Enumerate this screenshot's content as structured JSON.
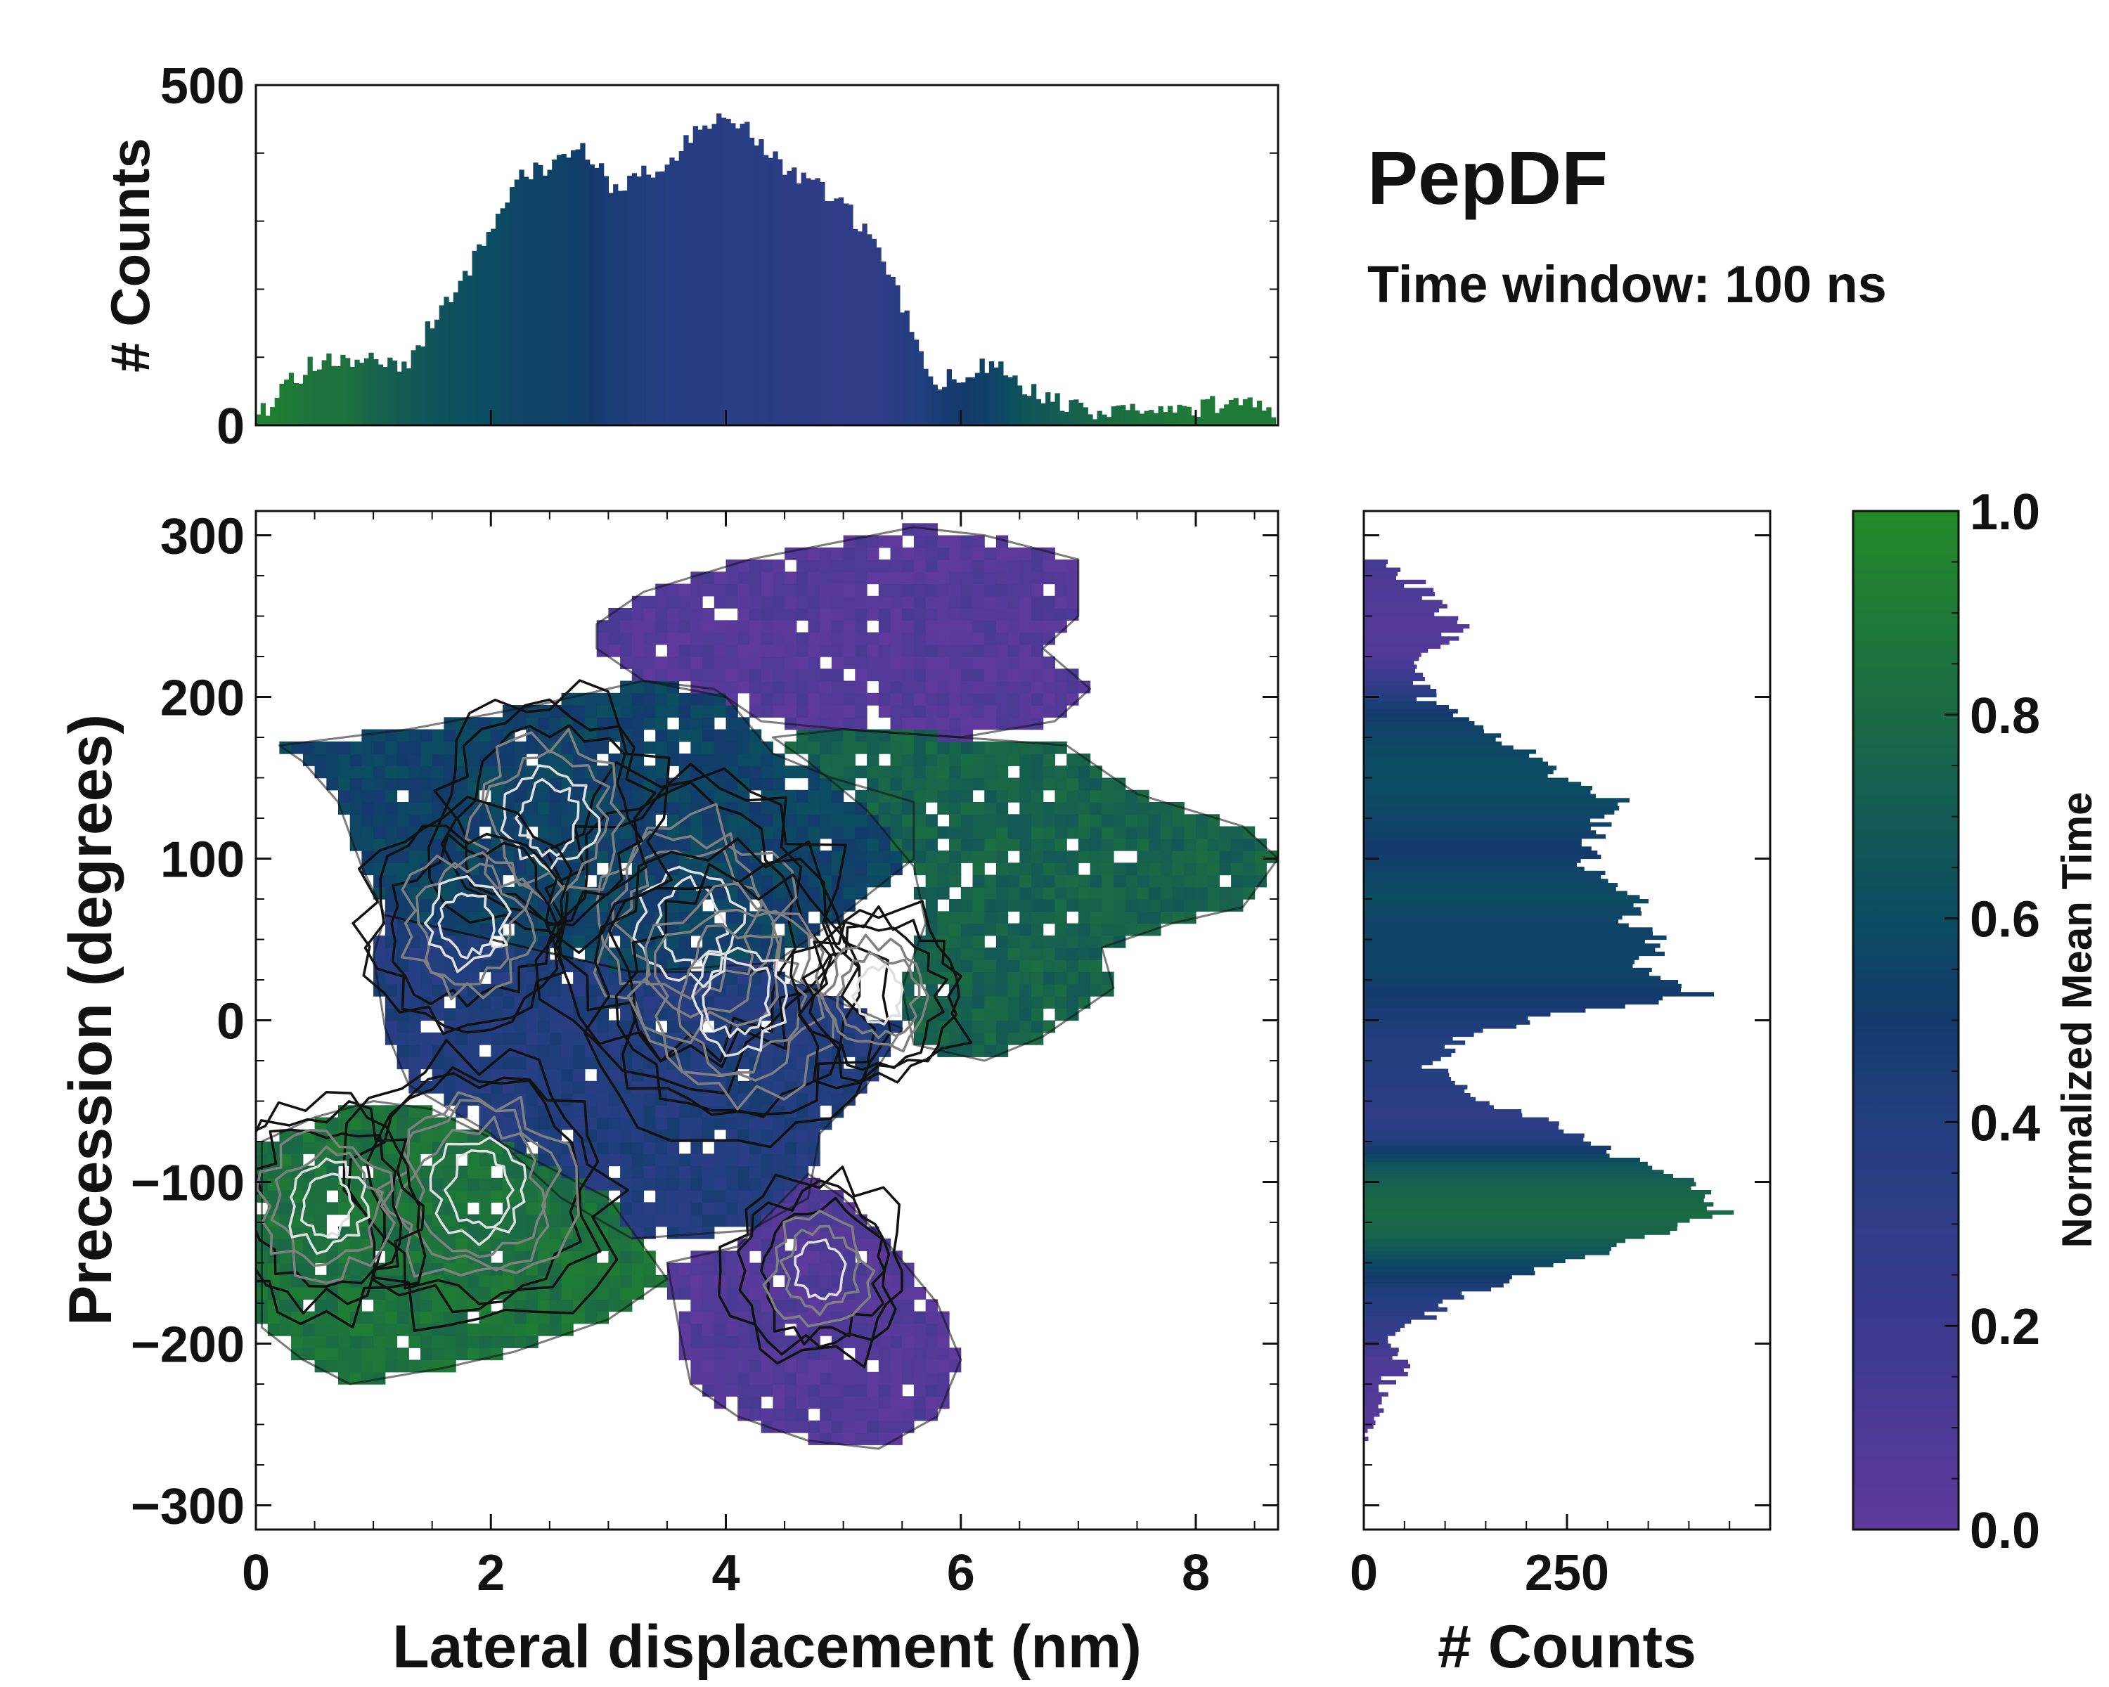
{
  "title": "PepDF",
  "subtitle": "Time window: 100 ns",
  "colors": {
    "t0": "#5e3a9c",
    "t02": "#3a3a8e",
    "t04": "#233f80",
    "t05": "#133a6c",
    "t06": "#0c4c62",
    "t08": "#1b6a45",
    "t1": "#238a28",
    "contour_dark": "#111111",
    "contour_gray": "#808080",
    "contour_light": "#e0e0e0"
  },
  "chart_data": [
    {
      "id": "main",
      "type": "heatmap",
      "xlabel": "Lateral displacement (nm)",
      "ylabel": "Precession (degrees)",
      "xlim": [
        0,
        8.7
      ],
      "ylim": [
        -315,
        315
      ],
      "xticks": [
        0,
        2,
        4,
        6,
        8
      ],
      "xtick_labels": [
        "0",
        "2",
        "4",
        "6",
        "8"
      ],
      "yticks": [
        300,
        200,
        100,
        0,
        -100,
        -200,
        -300
      ],
      "ytick_labels": [
        "300",
        "200",
        "100",
        "0",
        "−100",
        "−200",
        "−300"
      ],
      "color_by": "Normalized Mean Time",
      "regions": [
        {
          "name": "upper-purple",
          "t": 0.05,
          "polygon": [
            [
              2.9,
              245
            ],
            [
              3.3,
              265
            ],
            [
              4.2,
              285
            ],
            [
              4.9,
              295
            ],
            [
              5.6,
              305
            ],
            [
              6.2,
              300
            ],
            [
              7.0,
              285
            ],
            [
              7.0,
              250
            ],
            [
              6.7,
              230
            ],
            [
              7.1,
              205
            ],
            [
              6.8,
              185
            ],
            [
              6.0,
              175
            ],
            [
              5.0,
              180
            ],
            [
              4.3,
              185
            ],
            [
              3.9,
              205
            ],
            [
              3.3,
              210
            ],
            [
              2.9,
              230
            ]
          ]
        },
        {
          "name": "upper-left-blue",
          "t": 0.55,
          "polygon": [
            [
              0.2,
              170
            ],
            [
              1.3,
              180
            ],
            [
              2.4,
              195
            ],
            [
              3.3,
              210
            ],
            [
              4.0,
              200
            ],
            [
              4.4,
              165
            ],
            [
              4.9,
              150
            ],
            [
              5.6,
              135
            ],
            [
              5.6,
              100
            ],
            [
              4.9,
              60
            ],
            [
              4.3,
              30
            ],
            [
              3.2,
              30
            ],
            [
              2.0,
              50
            ],
            [
              1.1,
              65
            ],
            [
              0.9,
              95
            ],
            [
              0.7,
              135
            ],
            [
              0.4,
              160
            ]
          ]
        },
        {
          "name": "upper-right-green",
          "t": 0.75,
          "polygon": [
            [
              4.4,
              175
            ],
            [
              5.0,
              180
            ],
            [
              6.0,
              175
            ],
            [
              6.9,
              170
            ],
            [
              7.5,
              140
            ],
            [
              8.4,
              120
            ],
            [
              8.7,
              100
            ],
            [
              8.4,
              70
            ],
            [
              7.8,
              60
            ],
            [
              7.2,
              45
            ],
            [
              7.3,
              20
            ],
            [
              6.7,
              -10
            ],
            [
              6.2,
              -25
            ],
            [
              5.6,
              -15
            ],
            [
              5.5,
              20
            ],
            [
              5.7,
              60
            ],
            [
              5.6,
              95
            ],
            [
              5.2,
              130
            ],
            [
              4.7,
              160
            ]
          ]
        },
        {
          "name": "central-blue",
          "t": 0.4,
          "polygon": [
            [
              1.1,
              65
            ],
            [
              2.0,
              50
            ],
            [
              3.2,
              30
            ],
            [
              4.3,
              35
            ],
            [
              5.0,
              10
            ],
            [
              5.5,
              -5
            ],
            [
              5.2,
              -40
            ],
            [
              4.8,
              -70
            ],
            [
              4.7,
              -110
            ],
            [
              4.2,
              -130
            ],
            [
              3.2,
              -135
            ],
            [
              2.6,
              -110
            ],
            [
              2.0,
              -70
            ],
            [
              1.3,
              -40
            ],
            [
              1.1,
              -5
            ],
            [
              1.0,
              40
            ]
          ]
        },
        {
          "name": "lower-left-green",
          "t": 0.85,
          "polygon": [
            [
              0.05,
              -75
            ],
            [
              0.5,
              -60
            ],
            [
              1.0,
              -50
            ],
            [
              1.5,
              -55
            ],
            [
              2.2,
              -80
            ],
            [
              3.0,
              -110
            ],
            [
              3.3,
              -140
            ],
            [
              3.5,
              -160
            ],
            [
              3.0,
              -185
            ],
            [
              2.2,
              -205
            ],
            [
              1.6,
              -215
            ],
            [
              0.8,
              -225
            ],
            [
              0.4,
              -210
            ],
            [
              0.05,
              -190
            ]
          ]
        },
        {
          "name": "lower-purple",
          "t": 0.06,
          "polygon": [
            [
              3.5,
              -150
            ],
            [
              4.1,
              -140
            ],
            [
              4.7,
              -95
            ],
            [
              5.0,
              -110
            ],
            [
              5.4,
              -140
            ],
            [
              5.8,
              -175
            ],
            [
              6.0,
              -210
            ],
            [
              5.8,
              -245
            ],
            [
              5.3,
              -265
            ],
            [
              4.7,
              -260
            ],
            [
              4.1,
              -245
            ],
            [
              3.7,
              -225
            ],
            [
              3.6,
              -190
            ]
          ]
        }
      ],
      "contour_hotspots": [
        {
          "x": 3.7,
          "y": 60,
          "level": 1.0
        },
        {
          "x": 4.1,
          "y": 15,
          "level": 0.95
        },
        {
          "x": 2.5,
          "y": 125,
          "level": 0.8
        },
        {
          "x": 1.8,
          "y": 60,
          "level": 0.7
        },
        {
          "x": 1.9,
          "y": -105,
          "level": 0.9
        },
        {
          "x": 0.6,
          "y": -115,
          "level": 0.7
        },
        {
          "x": 4.8,
          "y": -155,
          "level": 0.6
        },
        {
          "x": 5.3,
          "y": 15,
          "level": 0.6
        }
      ]
    },
    {
      "id": "top-histogram",
      "type": "bar",
      "ylabel": "# Counts",
      "xlim": [
        0,
        8.7
      ],
      "ylim": [
        0,
        500
      ],
      "yticks": [
        500,
        0
      ],
      "ytick_labels": [
        "500",
        "0"
      ],
      "x": [
        0.0,
        0.25,
        0.5,
        0.75,
        1.0,
        1.25,
        1.5,
        1.75,
        2.0,
        2.25,
        2.5,
        2.75,
        3.0,
        3.25,
        3.5,
        3.75,
        4.0,
        4.25,
        4.5,
        4.75,
        5.0,
        5.25,
        5.5,
        5.75,
        6.0,
        6.25,
        6.5,
        6.75,
        7.0,
        7.25,
        7.5,
        7.75,
        8.0,
        8.25,
        8.5,
        8.7
      ],
      "values": [
        10,
        60,
        95,
        95,
        100,
        90,
        155,
        215,
        300,
        370,
        385,
        405,
        355,
        365,
        380,
        440,
        450,
        425,
        375,
        355,
        320,
        265,
        170,
        60,
        75,
        90,
        55,
        35,
        25,
        15,
        22,
        28,
        25,
        35,
        25,
        5
      ],
      "mean_time": [
        0.95,
        0.9,
        0.85,
        0.85,
        0.75,
        0.7,
        0.65,
        0.62,
        0.6,
        0.55,
        0.55,
        0.52,
        0.45,
        0.42,
        0.38,
        0.36,
        0.35,
        0.35,
        0.32,
        0.32,
        0.3,
        0.3,
        0.35,
        0.45,
        0.5,
        0.55,
        0.65,
        0.7,
        0.75,
        0.8,
        0.85,
        0.88,
        0.9,
        0.9,
        0.9,
        0.9
      ]
    },
    {
      "id": "right-histogram",
      "type": "bar",
      "orientation": "horizontal",
      "xlabel": "# Counts",
      "xlim": [
        0,
        500
      ],
      "xticks": [
        0,
        250
      ],
      "xtick_labels": [
        "0",
        "250"
      ],
      "ylim": [
        -315,
        315
      ],
      "y": [
        285,
        270,
        255,
        240,
        225,
        210,
        195,
        180,
        165,
        150,
        135,
        120,
        105,
        90,
        75,
        60,
        45,
        30,
        15,
        0,
        -15,
        -30,
        -45,
        -60,
        -75,
        -90,
        -105,
        -120,
        -135,
        -150,
        -165,
        -180,
        -195,
        -210,
        -225,
        -240,
        -255
      ],
      "values": [
        10,
        60,
        90,
        120,
        75,
        70,
        80,
        140,
        200,
        240,
        310,
        290,
        275,
        280,
        340,
        330,
        370,
        340,
        420,
        210,
        110,
        80,
        120,
        200,
        270,
        340,
        420,
        440,
        350,
        260,
        160,
        90,
        40,
        45,
        35,
        18,
        8
      ],
      "mean_time": [
        0.15,
        0.1,
        0.08,
        0.05,
        0.08,
        0.2,
        0.45,
        0.55,
        0.58,
        0.6,
        0.58,
        0.55,
        0.5,
        0.55,
        0.6,
        0.55,
        0.55,
        0.55,
        0.5,
        0.45,
        0.4,
        0.4,
        0.35,
        0.3,
        0.4,
        0.65,
        0.75,
        0.8,
        0.75,
        0.6,
        0.45,
        0.35,
        0.25,
        0.1,
        0.08,
        0.05,
        0.03
      ]
    },
    {
      "id": "colorbar",
      "type": "colorbar",
      "label": "Normalized Mean Time",
      "range": [
        0,
        1
      ],
      "ticks": [
        1.0,
        0.8,
        0.6,
        0.4,
        0.2,
        0.0
      ],
      "tick_labels": [
        "1.0",
        "0.8",
        "0.6",
        "0.4",
        "0.2",
        "0.0"
      ]
    }
  ]
}
